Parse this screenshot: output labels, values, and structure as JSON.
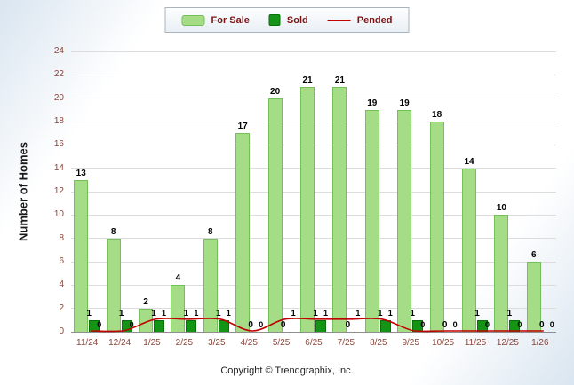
{
  "legend": {
    "for_sale": "For Sale",
    "sold": "Sold",
    "pended": "Pended"
  },
  "y_axis_title": "Number of Homes",
  "footer": "Copyright © Trendgraphix, Inc.",
  "colors": {
    "for_sale_fill": "#A5DD87",
    "for_sale_border": "#74BF5A",
    "sold_fill": "#149414",
    "sold_border": "#0A6E0A",
    "pended_line": "#C00000",
    "axis_text": "#8B4538",
    "legend_text": "#7A1414"
  },
  "chart_data": {
    "type": "bar",
    "title": "",
    "xlabel": "",
    "ylabel": "Number of Homes",
    "ylim": [
      0,
      24
    ],
    "ytick_step": 2,
    "grid": true,
    "legend_position": "top-center",
    "categories": [
      "11/24",
      "12/24",
      "1/25",
      "2/25",
      "3/25",
      "4/25",
      "5/25",
      "6/25",
      "7/25",
      "8/25",
      "9/25",
      "10/25",
      "11/25",
      "12/25",
      "1/26"
    ],
    "series": [
      {
        "name": "For Sale",
        "type": "bar",
        "values": [
          13,
          8,
          2,
          4,
          8,
          17,
          20,
          21,
          21,
          19,
          19,
          18,
          14,
          10,
          6
        ]
      },
      {
        "name": "Sold",
        "type": "bar",
        "values": [
          1,
          1,
          1,
          1,
          1,
          0,
          0,
          1,
          0,
          1,
          1,
          0,
          1,
          1,
          0
        ]
      },
      {
        "name": "Pended",
        "type": "line",
        "values": [
          0,
          0,
          1,
          1,
          1,
          0,
          1,
          1,
          1,
          1,
          0,
          0,
          0,
          0,
          0
        ]
      }
    ]
  }
}
